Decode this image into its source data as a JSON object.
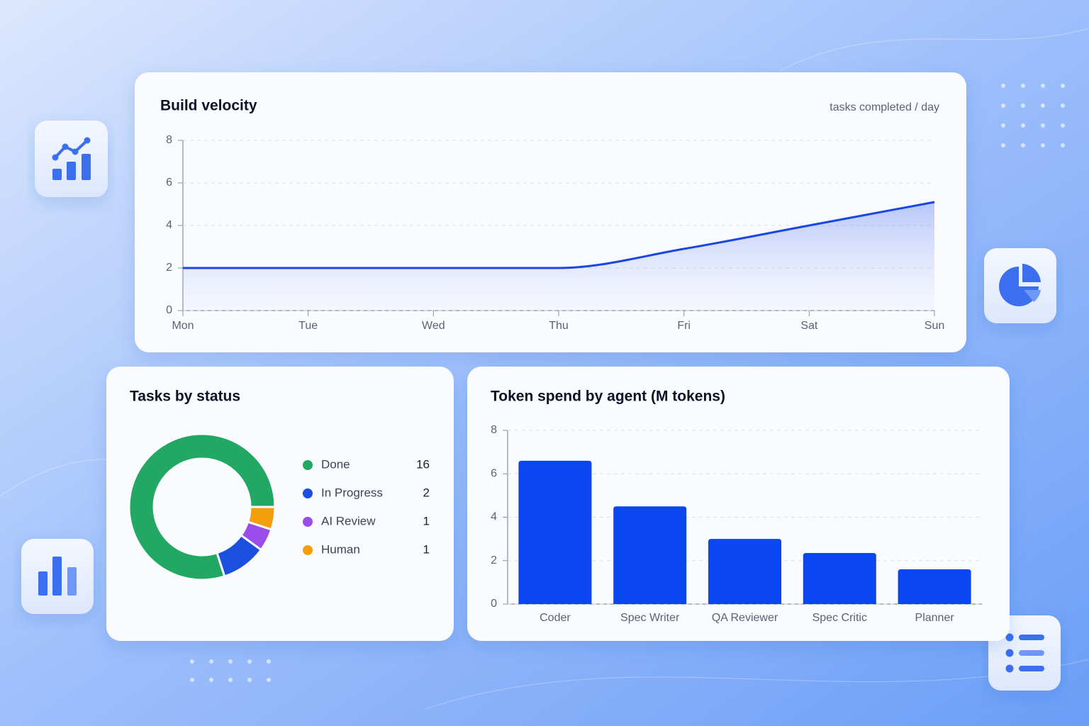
{
  "chart_data": [
    {
      "type": "line",
      "title": "Build velocity",
      "subtitle": "tasks completed / day",
      "categories": [
        "Mon",
        "Tue",
        "Wed",
        "Thu",
        "Fri",
        "Sat",
        "Sun"
      ],
      "values": [
        2,
        2,
        2,
        2,
        2.9,
        4.0,
        5.1
      ],
      "color": "#1a47e0",
      "ylim": [
        0,
        8
      ],
      "yticks": [
        0,
        2,
        4,
        6,
        8
      ],
      "grid": true
    },
    {
      "type": "donut",
      "title": "Tasks by status",
      "categories": [
        "Done",
        "In Progress",
        "AI Review",
        "Human"
      ],
      "values": [
        16,
        2,
        1,
        1
      ],
      "colors": [
        "#22a862",
        "#1a4fe0",
        "#9b4dea",
        "#f59e0b"
      ]
    },
    {
      "type": "bar",
      "title": "Token spend by agent (M tokens)",
      "categories": [
        "Coder",
        "Spec Writer",
        "QA Reviewer",
        "Spec Critic",
        "Planner"
      ],
      "values": [
        6.6,
        4.5,
        3.0,
        2.35,
        1.6
      ],
      "color": "#0a47f0",
      "ylim": [
        0,
        8
      ],
      "yticks": [
        0,
        2,
        4,
        6,
        8
      ],
      "grid": true
    }
  ]
}
